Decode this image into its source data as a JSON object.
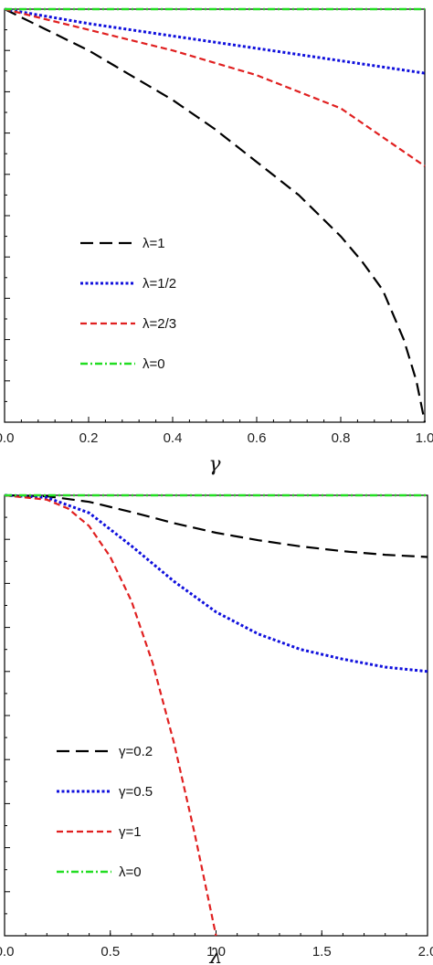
{
  "chart_data": [
    {
      "type": "line",
      "xlabel": "γ",
      "ylabel": "",
      "xlim": [
        0,
        1
      ],
      "ylim": [
        0,
        1
      ],
      "xticks": [
        "0.0",
        "0.2",
        "0.4",
        "0.6",
        "0.8",
        "1.0"
      ],
      "legend_position": "center-left",
      "series": [
        {
          "name": "λ=1",
          "color": "#000000",
          "style": "long-dash",
          "x": [
            0,
            0.1,
            0.2,
            0.3,
            0.4,
            0.5,
            0.6,
            0.7,
            0.8,
            0.85,
            0.9,
            0.95,
            0.98,
            1.0
          ],
          "y": [
            1.0,
            0.95,
            0.9,
            0.84,
            0.78,
            0.71,
            0.63,
            0.55,
            0.45,
            0.39,
            0.32,
            0.2,
            0.1,
            0.0
          ]
        },
        {
          "name": "λ=1/2",
          "color": "#1010dd",
          "style": "dotted",
          "x": [
            0,
            0.2,
            0.4,
            0.6,
            0.8,
            1.0
          ],
          "y": [
            1.0,
            0.965,
            0.935,
            0.905,
            0.875,
            0.845
          ]
        },
        {
          "name": "λ=2/3",
          "color": "#e02020",
          "style": "dashed",
          "x": [
            0,
            0.2,
            0.4,
            0.6,
            0.8,
            1.0
          ],
          "y": [
            1.0,
            0.95,
            0.9,
            0.84,
            0.76,
            0.62
          ]
        },
        {
          "name": "λ=0",
          "color": "#22dd22",
          "style": "dash-dot",
          "x": [
            0,
            1.0
          ],
          "y": [
            1.0,
            1.0
          ]
        }
      ]
    },
    {
      "type": "line",
      "xlabel": "λ",
      "ylabel": "",
      "xlim": [
        0,
        2
      ],
      "ylim": [
        0,
        1
      ],
      "xticks": [
        "0.0",
        "0.5",
        "1.0",
        "1.5",
        "2.0"
      ],
      "legend_position": "bottom-left",
      "series": [
        {
          "name": "γ=0.2",
          "color": "#000000",
          "style": "long-dash",
          "x": [
            0,
            0.2,
            0.4,
            0.6,
            0.8,
            1.0,
            1.2,
            1.4,
            1.6,
            1.8,
            2.0
          ],
          "y": [
            1.0,
            0.998,
            0.985,
            0.962,
            0.937,
            0.915,
            0.898,
            0.884,
            0.873,
            0.865,
            0.86
          ]
        },
        {
          "name": "γ=0.5",
          "color": "#1010dd",
          "style": "dotted",
          "x": [
            0,
            0.2,
            0.4,
            0.6,
            0.8,
            1.0,
            1.2,
            1.4,
            1.6,
            1.8,
            2.0
          ],
          "y": [
            1.0,
            0.995,
            0.96,
            0.885,
            0.805,
            0.735,
            0.685,
            0.65,
            0.628,
            0.61,
            0.6
          ]
        },
        {
          "name": "γ=1",
          "color": "#e02020",
          "style": "dashed",
          "x": [
            0,
            0.2,
            0.3,
            0.4,
            0.5,
            0.6,
            0.7,
            0.8,
            0.9,
            1.0
          ],
          "y": [
            1.0,
            0.99,
            0.97,
            0.93,
            0.86,
            0.76,
            0.62,
            0.44,
            0.23,
            0.0
          ]
        },
        {
          "name": "λ=0",
          "color": "#22dd22",
          "style": "dash-dot",
          "x": [
            0,
            2.0
          ],
          "y": [
            1.0,
            1.0
          ]
        }
      ]
    }
  ]
}
